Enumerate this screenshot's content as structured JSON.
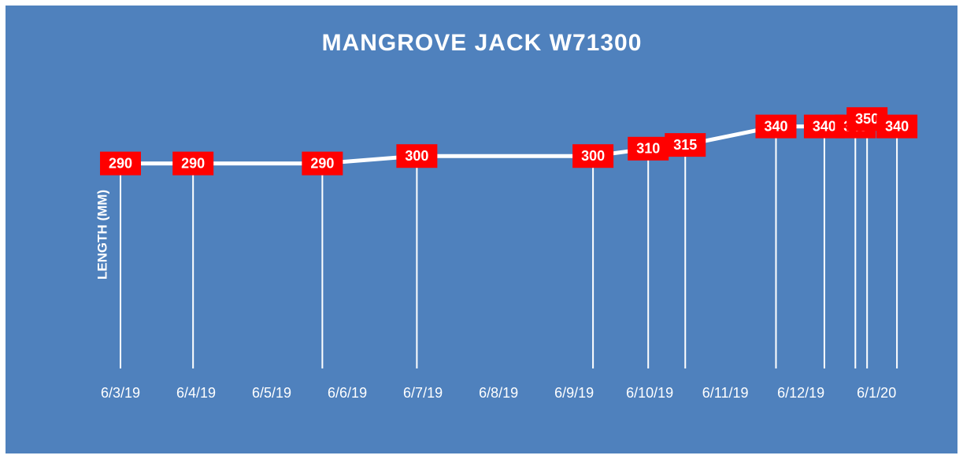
{
  "chart_data": {
    "type": "line",
    "title": "MANGROVE JACK W71300",
    "y_label": "LENGTH (MM)",
    "x": [
      0,
      0.96,
      2.67,
      3.92,
      6.25,
      6.98,
      7.47,
      8.67,
      9.31,
      9.72,
      9.875,
      10.27
    ],
    "series": [
      {
        "name": "LENGTH (MM)",
        "color": "#ffffff",
        "values": [
          290,
          290,
          290,
          300,
          300,
          310,
          315,
          340,
          340,
          340,
          350,
          340
        ]
      }
    ],
    "xlim": [
      -0.5,
      10.8
    ],
    "xticks": [
      {
        "value": 0,
        "label": "6/3/19"
      },
      {
        "value": 1,
        "label": "6/4/19"
      },
      {
        "value": 2,
        "label": "6/5/19"
      },
      {
        "value": 3,
        "label": "6/6/19"
      },
      {
        "value": 4,
        "label": "6/7/19"
      },
      {
        "value": 5,
        "label": "6/8/19"
      },
      {
        "value": 6,
        "label": "6/9/19"
      },
      {
        "value": 7,
        "label": "6/10/19"
      },
      {
        "value": 8,
        "label": "6/11/19"
      },
      {
        "value": 9,
        "label": "6/12/19"
      },
      {
        "value": 10,
        "label": "6/1/20"
      }
    ],
    "ylim": [
      13,
      380
    ],
    "label_color": "#ff0000",
    "drop_lines": true
  }
}
